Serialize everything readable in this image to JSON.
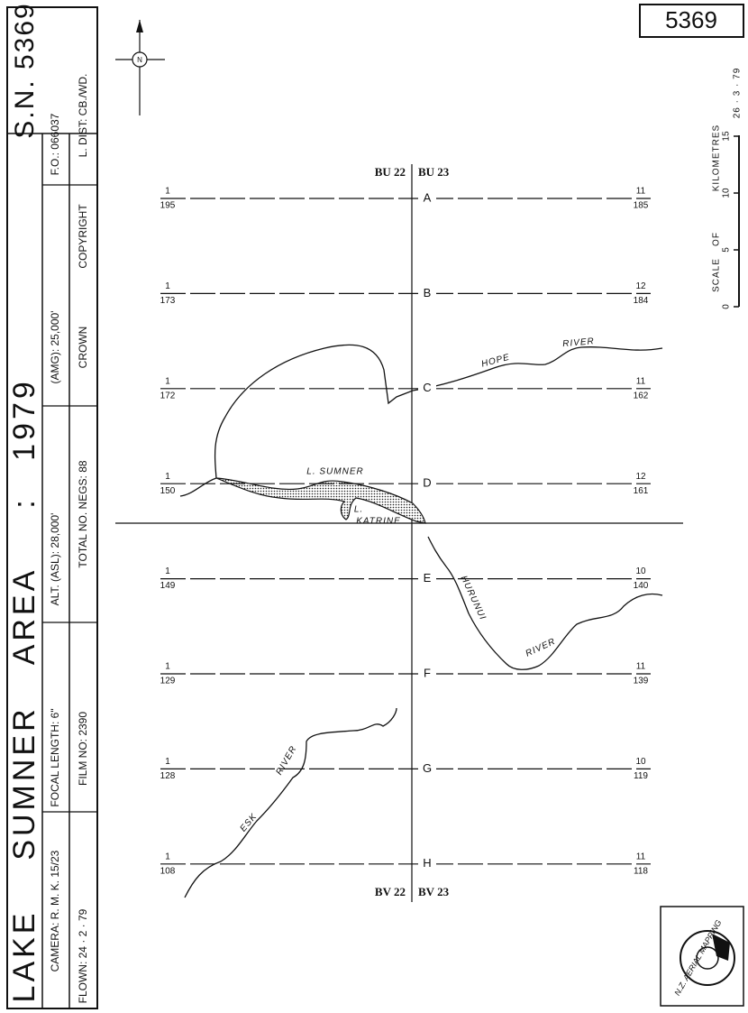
{
  "sheet_number": "5369",
  "title_block": {
    "title": [
      "LAKE",
      "SUMNER",
      "AREA",
      ":",
      "1979"
    ],
    "sn": "S.N. 5369",
    "column1": [
      "CAMERA: R. M. K. 15/23",
      "FOCAL LENGTH: 6\"",
      "ALT. (ASL): 28,000'",
      "(AMG): 25,000'",
      "F.O.: 066037"
    ],
    "column2": [
      "FLOWN: 24 · 2 · 79",
      "FILM NO: 2390",
      "TOTAL NO. NEGS: 88",
      "CROWN",
      "COPYRIGHT",
      "L. DIST: CB./WD."
    ]
  },
  "compass": "N",
  "scale": {
    "caption": [
      "SCALE",
      "OF",
      "KILOMETRES"
    ],
    "ticks": [
      "0",
      "5",
      "10",
      "15"
    ],
    "date": "26 · 3 · 79"
  },
  "grid_labels": {
    "top_left": "BU 22",
    "top_right": "BU 23",
    "bottom_left": "BV 22",
    "bottom_right": "BV 23"
  },
  "flight_lines": [
    {
      "letter": "A",
      "left_top": "1",
      "left_bottom": "195",
      "right_top": "11",
      "right_bottom": "185"
    },
    {
      "letter": "B",
      "left_top": "1",
      "left_bottom": "173",
      "right_top": "12",
      "right_bottom": "184"
    },
    {
      "letter": "C",
      "left_top": "1",
      "left_bottom": "172",
      "right_top": "11",
      "right_bottom": "162"
    },
    {
      "letter": "D",
      "left_top": "1",
      "left_bottom": "150",
      "right_top": "12",
      "right_bottom": "161"
    },
    {
      "letter": "E",
      "left_top": "1",
      "left_bottom": "149",
      "right_top": "10",
      "right_bottom": "140"
    },
    {
      "letter": "F",
      "left_top": "1",
      "left_bottom": "129",
      "right_top": "11",
      "right_bottom": "139"
    },
    {
      "letter": "G",
      "left_top": "1",
      "left_bottom": "128",
      "right_top": "10",
      "right_bottom": "119"
    },
    {
      "letter": "H",
      "left_top": "1",
      "left_bottom": "108",
      "right_top": "11",
      "right_bottom": "118"
    }
  ],
  "features": [
    "HOPE",
    "RIVER",
    "L. SUMNER",
    "L.",
    "KATRINE",
    "HURUNUI",
    "RIVER",
    "ESK",
    "RIVER"
  ],
  "logo": "N.Z. AERIAL MAPPING"
}
